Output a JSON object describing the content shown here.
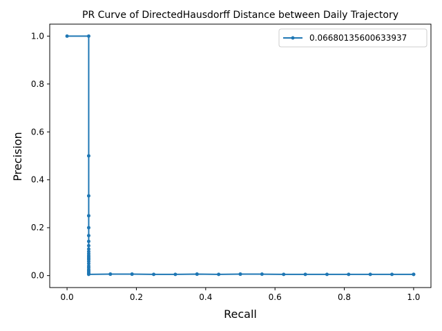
{
  "chart_data": {
    "type": "line",
    "title": "PR Curve of DirectedHausdorff Distance between Daily Trajectory",
    "xlabel": "Recall",
    "ylabel": "Precision",
    "xlim": [
      -0.05,
      1.05
    ],
    "ylim": [
      -0.05,
      1.05
    ],
    "x_ticks": [
      "0.0",
      "0.2",
      "0.4",
      "0.6",
      "0.8",
      "1.0"
    ],
    "y_ticks": [
      "0.0",
      "0.2",
      "0.4",
      "0.6",
      "0.8",
      "1.0"
    ],
    "grid": false,
    "legend_position": "top-right",
    "series": [
      {
        "name": "0.06680135600633937",
        "color": "#1f77b4",
        "marker": "circle",
        "x": [
          0.0,
          0.0625,
          0.0625,
          0.0625,
          0.0625,
          0.0625,
          0.0625,
          0.0625,
          0.0625,
          0.0625,
          0.0625,
          0.0625,
          0.0625,
          0.0625,
          0.0625,
          0.0625,
          0.0625,
          0.0625,
          0.0625,
          0.0625,
          0.0625,
          0.0625,
          0.0625,
          0.0625,
          0.0625,
          0.0625,
          0.125,
          0.125,
          0.1875,
          0.1875,
          0.25,
          0.3125,
          0.375,
          0.375,
          0.4375,
          0.5,
          0.5,
          0.5625,
          0.625,
          0.6875,
          0.75,
          0.8125,
          0.875,
          0.9375,
          1.0,
          1.0
        ],
        "y": [
          1.0,
          1.0,
          0.5,
          0.333,
          0.25,
          0.2,
          0.167,
          0.143,
          0.125,
          0.111,
          0.1,
          0.091,
          0.083,
          0.077,
          0.071,
          0.067,
          0.059,
          0.05,
          0.04,
          0.033,
          0.025,
          0.02,
          0.015,
          0.01,
          0.007,
          0.005,
          0.006,
          0.006,
          0.006,
          0.006,
          0.005,
          0.005,
          0.006,
          0.006,
          0.005,
          0.006,
          0.006,
          0.006,
          0.005,
          0.005,
          0.005,
          0.005,
          0.005,
          0.005,
          0.005,
          0.005
        ]
      }
    ]
  }
}
